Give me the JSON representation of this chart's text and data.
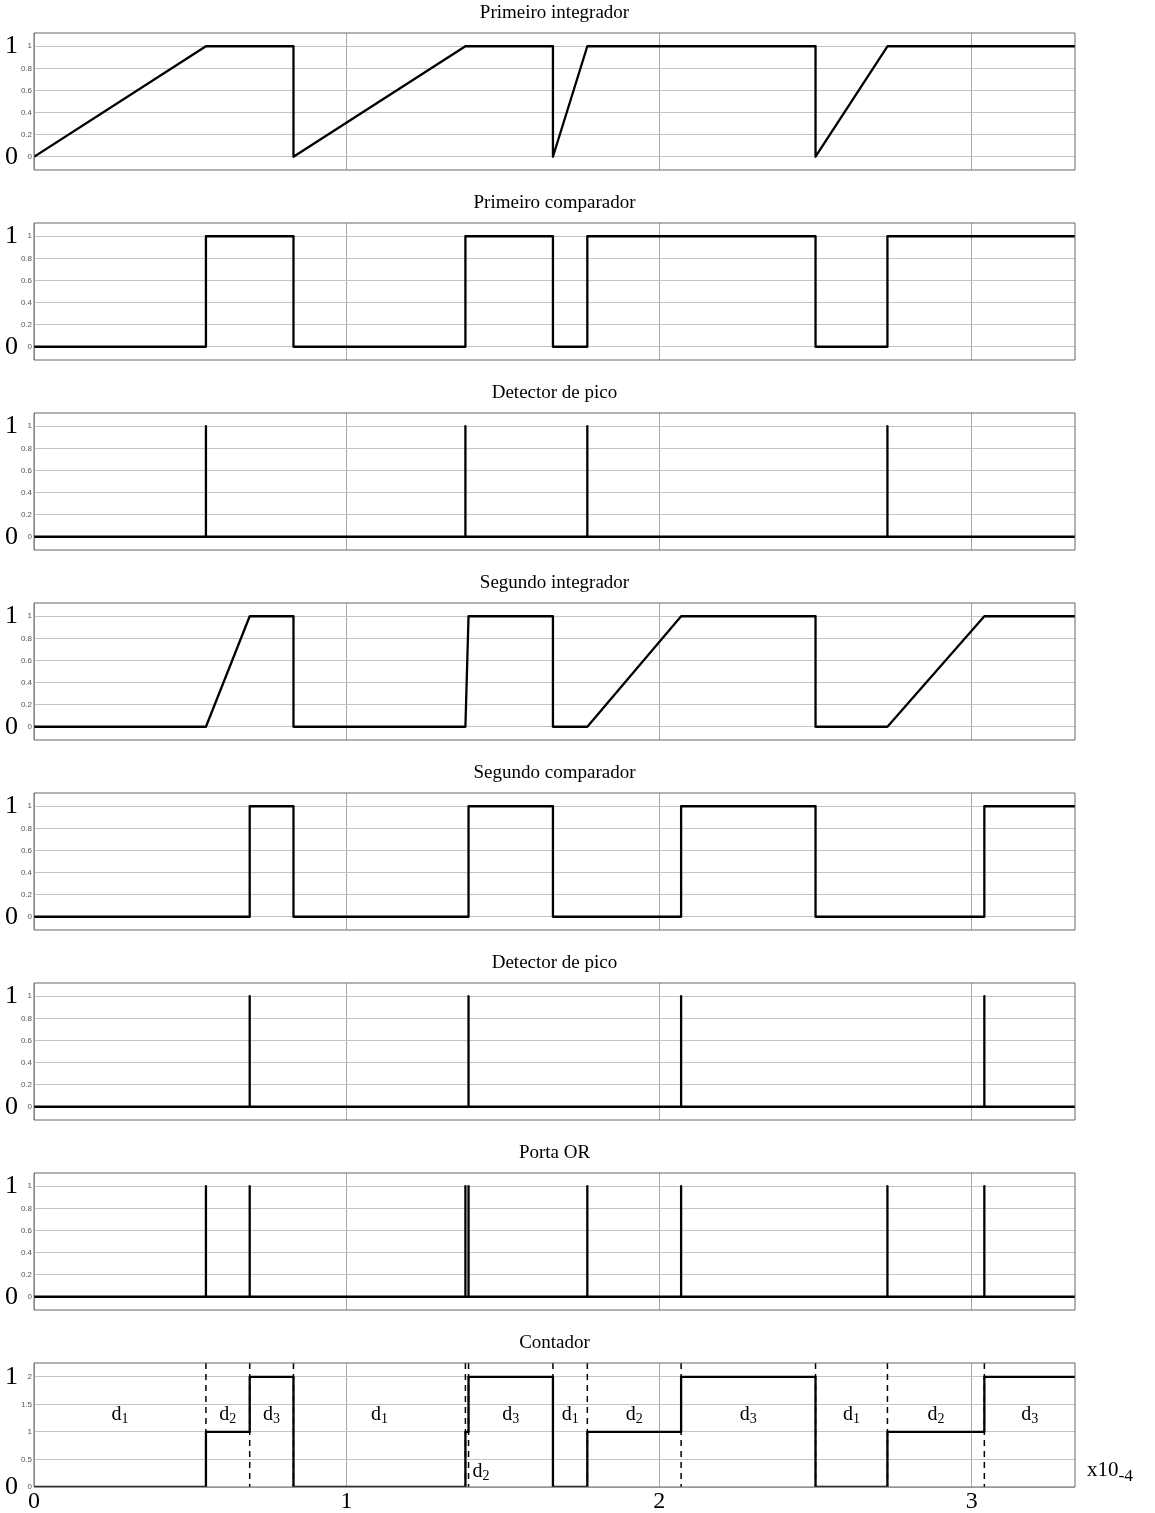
{
  "chart_data": [
    {
      "type": "line",
      "title": "Primeiro integrador",
      "x": [
        0,
        0.55,
        0.83,
        0.83,
        1.38,
        1.66,
        1.66,
        1.77,
        2.5,
        2.5,
        2.73,
        3.33
      ],
      "values": [
        0,
        1,
        1,
        0,
        1,
        1,
        0,
        1,
        1,
        0,
        1,
        1
      ],
      "color": "#000000",
      "xlim": [
        0,
        3.33
      ],
      "ylim": [
        -0.12,
        1.12
      ],
      "xticks": [
        0,
        1,
        2,
        3
      ],
      "yticks": [
        0,
        0.2,
        0.4,
        0.6,
        0.8,
        1
      ],
      "grid": true,
      "tick_labels": "y",
      "annotations": [
        "1",
        "0"
      ]
    },
    {
      "type": "line",
      "title": "Primeiro comparador",
      "x": [
        0,
        0.55,
        0.55,
        0.83,
        0.83,
        1.38,
        1.38,
        1.66,
        1.66,
        1.77,
        1.77,
        2.5,
        2.5,
        2.73,
        2.73,
        3.33
      ],
      "values": [
        0,
        0,
        1,
        1,
        0,
        0,
        1,
        1,
        0,
        0,
        1,
        1,
        0,
        0,
        1,
        1
      ],
      "color": "#000000",
      "xlim": [
        0,
        3.33
      ],
      "ylim": [
        -0.12,
        1.12
      ],
      "xticks": [
        0,
        1,
        2,
        3
      ],
      "yticks": [
        0,
        0.2,
        0.4,
        0.6,
        0.8,
        1
      ],
      "grid": true,
      "tick_labels": "y",
      "annotations": [
        "1",
        "0"
      ]
    },
    {
      "type": "line",
      "title": "Detector de pico",
      "x": [
        0,
        0.55,
        0.55,
        0.55,
        1.38,
        1.38,
        1.38,
        1.77,
        1.77,
        1.77,
        2.73,
        2.73,
        2.73,
        3.33
      ],
      "values": [
        0,
        0,
        1,
        0,
        0,
        1,
        0,
        0,
        1,
        0,
        0,
        1,
        0,
        0
      ],
      "color": "#000000",
      "xlim": [
        0,
        3.33
      ],
      "ylim": [
        -0.12,
        1.12
      ],
      "xticks": [
        0,
        1,
        2,
        3
      ],
      "yticks": [
        0,
        0.2,
        0.4,
        0.6,
        0.8,
        1
      ],
      "grid": true,
      "tick_labels": "y",
      "annotations": [
        "1",
        "0"
      ]
    },
    {
      "type": "line",
      "title": "Segundo integrador",
      "x": [
        0,
        0.55,
        0.69,
        0.83,
        0.83,
        1.38,
        1.39,
        1.66,
        1.66,
        1.77,
        2.07,
        2.5,
        2.5,
        2.73,
        3.04,
        3.33
      ],
      "values": [
        0,
        0,
        1,
        1,
        0,
        0,
        1,
        1,
        0,
        0,
        1,
        1,
        0,
        0,
        1,
        1
      ],
      "color": "#000000",
      "xlim": [
        0,
        3.33
      ],
      "ylim": [
        -0.12,
        1.12
      ],
      "xticks": [
        0,
        1,
        2,
        3
      ],
      "yticks": [
        0,
        0.2,
        0.4,
        0.6,
        0.8,
        1
      ],
      "grid": true,
      "tick_labels": "y",
      "annotations": [
        "1",
        "0"
      ]
    },
    {
      "type": "line",
      "title": "Segundo comparador",
      "x": [
        0,
        0.69,
        0.69,
        0.83,
        0.83,
        1.39,
        1.39,
        1.66,
        1.66,
        2.07,
        2.07,
        2.5,
        2.5,
        3.04,
        3.04,
        3.33
      ],
      "values": [
        0,
        0,
        1,
        1,
        0,
        0,
        1,
        1,
        0,
        0,
        1,
        1,
        0,
        0,
        1,
        1
      ],
      "color": "#000000",
      "xlim": [
        0,
        3.33
      ],
      "ylim": [
        -0.12,
        1.12
      ],
      "xticks": [
        0,
        1,
        2,
        3
      ],
      "yticks": [
        0,
        0.2,
        0.4,
        0.6,
        0.8,
        1
      ],
      "grid": true,
      "tick_labels": "y",
      "annotations": [
        "1",
        "0"
      ]
    },
    {
      "type": "line",
      "title": "Detector de pico",
      "x": [
        0,
        0.69,
        0.69,
        0.69,
        1.39,
        1.39,
        1.39,
        2.07,
        2.07,
        2.07,
        3.04,
        3.04,
        3.04,
        3.33
      ],
      "values": [
        0,
        0,
        1,
        0,
        0,
        1,
        0,
        0,
        1,
        0,
        0,
        1,
        0,
        0
      ],
      "color": "#000000",
      "xlim": [
        0,
        3.33
      ],
      "ylim": [
        -0.12,
        1.12
      ],
      "xticks": [
        0,
        1,
        2,
        3
      ],
      "yticks": [
        0,
        0.2,
        0.4,
        0.6,
        0.8,
        1
      ],
      "grid": true,
      "tick_labels": "y",
      "annotations": [
        "1",
        "0"
      ]
    },
    {
      "type": "line",
      "title": "Porta OR",
      "x": [
        0,
        0.55,
        0.55,
        0.55,
        0.69,
        0.69,
        0.69,
        1.38,
        1.38,
        1.38,
        1.39,
        1.39,
        1.39,
        1.77,
        1.77,
        1.77,
        2.07,
        2.07,
        2.07,
        2.73,
        2.73,
        2.73,
        3.04,
        3.04,
        3.04,
        3.33
      ],
      "values": [
        0,
        0,
        1,
        0,
        0,
        1,
        0,
        0,
        1,
        0,
        0,
        1,
        0,
        0,
        1,
        0,
        0,
        1,
        0,
        0,
        1,
        0,
        0,
        1,
        0,
        0
      ],
      "color": "#000000",
      "xlim": [
        0,
        3.33
      ],
      "ylim": [
        -0.12,
        1.12
      ],
      "xticks": [
        0,
        1,
        2,
        3
      ],
      "yticks": [
        0,
        0.2,
        0.4,
        0.6,
        0.8,
        1
      ],
      "grid": true,
      "tick_labels": "y",
      "annotations": [
        "1",
        "0"
      ]
    },
    {
      "type": "line",
      "title": "Contador",
      "xlabel": "x10$_{-4}$",
      "x": [
        0,
        0.55,
        0.55,
        0.69,
        0.69,
        0.83,
        0.83,
        1.38,
        1.38,
        1.39,
        1.39,
        1.66,
        1.66,
        1.77,
        1.77,
        2.07,
        2.07,
        2.5,
        2.5,
        2.73,
        2.73,
        3.04,
        3.04,
        3.33
      ],
      "values": [
        0,
        0,
        1,
        1,
        2,
        2,
        0,
        0,
        1,
        1,
        2,
        2,
        0,
        0,
        1,
        1,
        2,
        2,
        0,
        0,
        1,
        1,
        2,
        2
      ],
      "color": "#000000",
      "xlim": [
        0,
        3.33
      ],
      "ylim": [
        0,
        2.25
      ],
      "xticks": [
        0,
        1,
        2,
        3
      ],
      "yticks": [
        0,
        0.5,
        1,
        1.5,
        2
      ],
      "grid": true,
      "ref_lines": [
        {
          "axis": "x",
          "value": 0.55,
          "line_style": "dashed"
        },
        {
          "axis": "x",
          "value": 0.69,
          "line_style": "dashed"
        },
        {
          "axis": "x",
          "value": 0.83,
          "line_style": "dashed"
        },
        {
          "axis": "x",
          "value": 1.38,
          "line_style": "dashed"
        },
        {
          "axis": "x",
          "value": 1.39,
          "line_style": "dashed"
        },
        {
          "axis": "x",
          "value": 1.66,
          "line_style": "dashed"
        },
        {
          "axis": "x",
          "value": 1.77,
          "line_style": "dashed"
        },
        {
          "axis": "x",
          "value": 2.07,
          "line_style": "dashed"
        },
        {
          "axis": "x",
          "value": 2.5,
          "line_style": "dashed"
        },
        {
          "axis": "x",
          "value": 2.73,
          "line_style": "dashed"
        },
        {
          "axis": "x",
          "value": 3.04,
          "line_style": "dashed"
        }
      ],
      "annotations": [
        "1",
        "0",
        "d$_{1}$",
        "d$_{2}$",
        "d$_{3}$",
        "d$_{1}$",
        "d$_{2}$",
        "d$_{3}$",
        "d$_{1}$",
        "d$_{2}$",
        "d$_{3}$",
        "d$_{1}$",
        "d$_{2}$",
        "d$_{3}$"
      ]
    }
  ]
}
